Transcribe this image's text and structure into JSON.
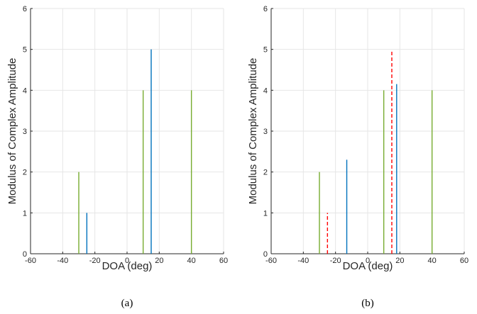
{
  "chart_data": [
    {
      "type": "stem",
      "panel_caption": "(a)",
      "xlabel": "DOA (deg)",
      "ylabel": "Modulus of Complex Amplitude",
      "xlim": [
        -60,
        60
      ],
      "ylim": [
        0,
        6
      ],
      "xticks": [
        -60,
        -40,
        -20,
        0,
        20,
        40,
        60
      ],
      "yticks": [
        0,
        1,
        2,
        3,
        4,
        5,
        6
      ],
      "grid": true,
      "series": [
        {
          "color": "#77AC30",
          "style": "solid",
          "x": [
            -30,
            10,
            40
          ],
          "y": [
            2,
            4,
            4
          ]
        },
        {
          "color": "#0072BD",
          "style": "solid",
          "x": [
            -25,
            15
          ],
          "y": [
            1,
            5
          ]
        }
      ]
    },
    {
      "type": "stem",
      "panel_caption": "(b)",
      "xlabel": "DOA (deg)",
      "ylabel": "Modulus of Complex Amplitude",
      "xlim": [
        -60,
        60
      ],
      "ylim": [
        0,
        6
      ],
      "xticks": [
        -60,
        -40,
        -20,
        0,
        20,
        40,
        60
      ],
      "yticks": [
        0,
        1,
        2,
        3,
        4,
        5,
        6
      ],
      "grid": true,
      "series": [
        {
          "color": "#77AC30",
          "style": "solid",
          "x": [
            -30,
            10,
            40
          ],
          "y": [
            2,
            4,
            4
          ]
        },
        {
          "color": "#0072BD",
          "style": "solid",
          "x": [
            -13,
            18
          ],
          "y": [
            2.3,
            4.15
          ]
        },
        {
          "color": "#FF0000",
          "style": "dashed",
          "x": [
            -25,
            15
          ],
          "y": [
            1,
            4.95
          ]
        }
      ]
    }
  ]
}
